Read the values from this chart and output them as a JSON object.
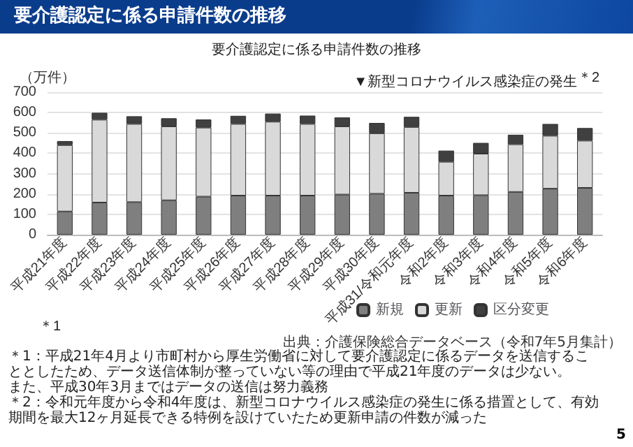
{
  "chart_data": {
    "type": "bar",
    "title": "要介護認定に係る申請件数の推移",
    "ylabel": "（万件）",
    "categories": [
      "平成21年度",
      "平成22年度",
      "平成23年度",
      "平成24年度",
      "平成25年度",
      "平成26年度",
      "平成27年度",
      "平成28年度",
      "平成29年度",
      "平成30年度",
      "平成31/令和元年度",
      "令和2年度",
      "令和3年度",
      "令和4年度",
      "令和5年度",
      "令和6年度"
    ],
    "stacked": true,
    "series": [
      {
        "name": "新規",
        "color": "#7f7f7f",
        "values": [
          114,
          158,
          160,
          169,
          187,
          192,
          192,
          192,
          197,
          201,
          206,
          192,
          194,
          210,
          226,
          230
        ]
      },
      {
        "name": "更新",
        "color": "#d9d9d9",
        "values": [
          326,
          407,
          384,
          363,
          339,
          352,
          363,
          352,
          335,
          297,
          323,
          166,
          204,
          234,
          260,
          232
        ]
      },
      {
        "name": "区分変更",
        "color": "#404040",
        "values": [
          20,
          34,
          38,
          40,
          40,
          40,
          40,
          41,
          44,
          51,
          50,
          55,
          53,
          47,
          58,
          62
        ]
      }
    ],
    "ylim": [
      0,
      700
    ],
    "yticks": [
      0,
      100,
      200,
      300,
      400,
      500,
      600,
      700
    ],
    "grid": "y",
    "legend": "bottom",
    "annotations": [
      "▼新型コロナウイルス感染症の発生",
      "＊2",
      "＊1",
      "出典：介護保険総合データベース（令和7年5月集計）",
      "＊1：平成21年4月より市町村から厚生労働省に対して要介護認定に係るデータを送信することとしたため、データ送信体制が整っていない等の理由で平成21年度のデータは少ない。",
      "また、平成30年3月まではデータの送信は努力義務",
      "＊2：令和元年度から令和4年度は、新型コロナウイルス感染症の発生に係る措置として、有効期間を最大12ヶ月延長できる特例を設けていたため更新申請の件数が減った",
      "5"
    ]
  }
}
